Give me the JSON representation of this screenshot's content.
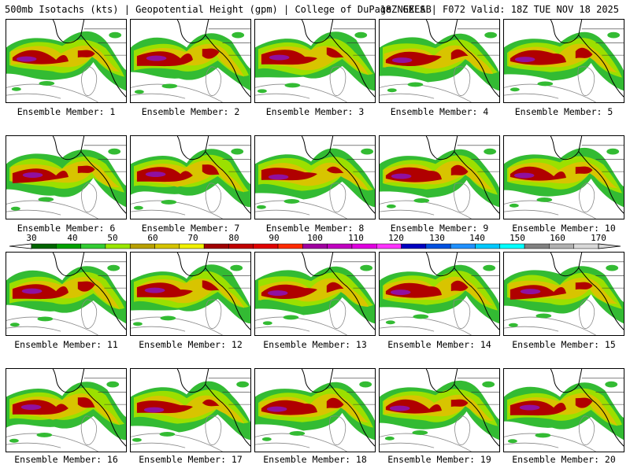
{
  "header": {
    "title_left": "500mb Isotachs (kts) | Geopotential Height (gpm) | College of DuPage NEXLAB",
    "title_right": "18Z GEFS | F072 Valid: 18Z TUE NOV 18 2025"
  },
  "colorbar": {
    "labels": [
      "30",
      "40",
      "50",
      "60",
      "70",
      "80",
      "90",
      "100",
      "110",
      "120",
      "130",
      "140",
      "150",
      "160",
      "170"
    ],
    "colors": [
      "#006400",
      "#00a000",
      "#33cc33",
      "#99e600",
      "#b8a000",
      "#d4c300",
      "#f0f000",
      "#a00000",
      "#c00000",
      "#e00000",
      "#ff2a00",
      "#a000a0",
      "#c000c0",
      "#e000e0",
      "#ff33ff",
      "#0000c0",
      "#0050e0",
      "#2090ff",
      "#00c8ff",
      "#00ffff",
      "#808080",
      "#b0b0b0",
      "#d8d8d8"
    ]
  },
  "members": [
    {
      "label": "Ensemble Member: 1"
    },
    {
      "label": "Ensemble Member: 2"
    },
    {
      "label": "Ensemble Member: 3"
    },
    {
      "label": "Ensemble Member: 4"
    },
    {
      "label": "Ensemble Member: 5"
    },
    {
      "label": "Ensemble Member: 6"
    },
    {
      "label": "Ensemble Member: 7"
    },
    {
      "label": "Ensemble Member: 8"
    },
    {
      "label": "Ensemble Member: 9"
    },
    {
      "label": "Ensemble Member: 10"
    },
    {
      "label": "Ensemble Member: 11"
    },
    {
      "label": "Ensemble Member: 12"
    },
    {
      "label": "Ensemble Member: 13"
    },
    {
      "label": "Ensemble Member: 14"
    },
    {
      "label": "Ensemble Member: 15"
    },
    {
      "label": "Ensemble Member: 16"
    },
    {
      "label": "Ensemble Member: 17"
    },
    {
      "label": "Ensemble Member: 18"
    },
    {
      "label": "Ensemble Member: 19"
    },
    {
      "label": "Ensemble Member: 20"
    }
  ]
}
